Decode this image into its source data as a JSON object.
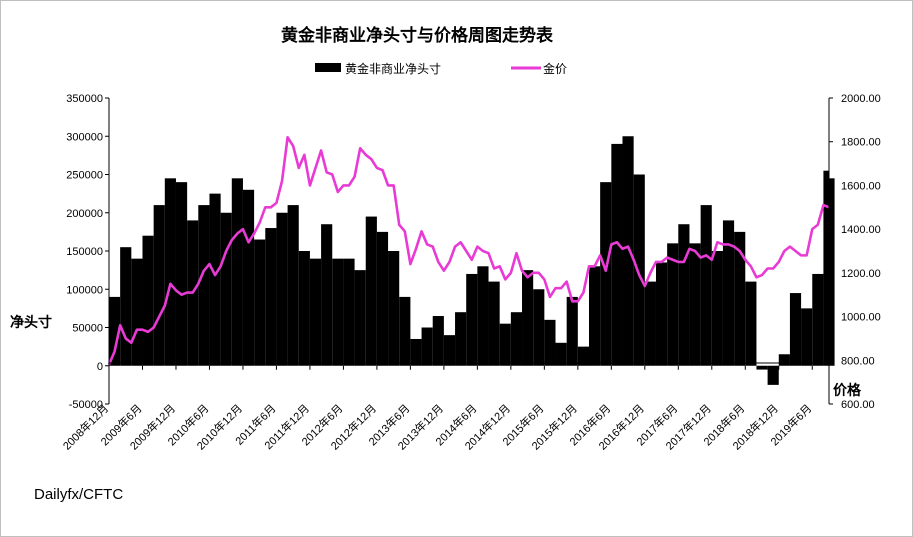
{
  "chart_data": {
    "type": "bar+line",
    "title": "黄金非商业净头寸与价格周图走势表",
    "source": "Dailyfx/CFTC",
    "left_axis_label": "净头寸",
    "right_axis_label": "价格",
    "legend_position": "top",
    "grid": false,
    "left_ylim": [
      -50000,
      350000
    ],
    "right_ylim": [
      600,
      2000
    ],
    "left_ticks": [
      "350000",
      "300000",
      "250000",
      "200000",
      "150000",
      "100000",
      "50000",
      "0",
      "-50000"
    ],
    "right_ticks": [
      "2000.00",
      "1800.00",
      "1600.00",
      "1400.00",
      "1200.00",
      "1000.00",
      "800.00",
      "600.00"
    ],
    "x_ticks": [
      "2008年12月",
      "2009年6月",
      "2009年12月",
      "2010年6月",
      "2010年12月",
      "2011年6月",
      "2011年12月",
      "2012年6月",
      "2012年12月",
      "2013年6月",
      "2013年12月",
      "2014年6月",
      "2014年12月",
      "2015年6月",
      "2015年12月",
      "2016年6月",
      "2016年12月",
      "2017年6月",
      "2017年12月",
      "2018年6月",
      "2018年12月",
      "2019年6月"
    ],
    "x_start": "2008-12",
    "x_end": "2019-09",
    "series": [
      {
        "name": "黄金非商业净头寸",
        "type": "bar",
        "axis": "left",
        "color": "#000000",
        "points": [
          [
            "2008-12",
            90000
          ],
          [
            "2009-02",
            155000
          ],
          [
            "2009-04",
            140000
          ],
          [
            "2009-06",
            170000
          ],
          [
            "2009-08",
            210000
          ],
          [
            "2009-10",
            245000
          ],
          [
            "2009-12",
            240000
          ],
          [
            "2010-02",
            190000
          ],
          [
            "2010-04",
            210000
          ],
          [
            "2010-06",
            225000
          ],
          [
            "2010-08",
            200000
          ],
          [
            "2010-10",
            245000
          ],
          [
            "2010-12",
            230000
          ],
          [
            "2011-02",
            165000
          ],
          [
            "2011-04",
            180000
          ],
          [
            "2011-06",
            200000
          ],
          [
            "2011-08",
            210000
          ],
          [
            "2011-10",
            150000
          ],
          [
            "2011-12",
            140000
          ],
          [
            "2012-02",
            185000
          ],
          [
            "2012-04",
            140000
          ],
          [
            "2012-06",
            140000
          ],
          [
            "2012-08",
            125000
          ],
          [
            "2012-10",
            195000
          ],
          [
            "2012-12",
            175000
          ],
          [
            "2013-02",
            150000
          ],
          [
            "2013-04",
            90000
          ],
          [
            "2013-06",
            35000
          ],
          [
            "2013-08",
            50000
          ],
          [
            "2013-10",
            65000
          ],
          [
            "2013-12",
            40000
          ],
          [
            "2014-02",
            70000
          ],
          [
            "2014-04",
            120000
          ],
          [
            "2014-06",
            130000
          ],
          [
            "2014-08",
            110000
          ],
          [
            "2014-10",
            55000
          ],
          [
            "2014-12",
            70000
          ],
          [
            "2015-02",
            125000
          ],
          [
            "2015-04",
            100000
          ],
          [
            "2015-06",
            60000
          ],
          [
            "2015-08",
            30000
          ],
          [
            "2015-10",
            90000
          ],
          [
            "2015-12",
            25000
          ],
          [
            "2016-02",
            130000
          ],
          [
            "2016-04",
            240000
          ],
          [
            "2016-06",
            290000
          ],
          [
            "2016-08",
            300000
          ],
          [
            "2016-10",
            250000
          ],
          [
            "2016-12",
            110000
          ],
          [
            "2017-02",
            135000
          ],
          [
            "2017-04",
            160000
          ],
          [
            "2017-06",
            185000
          ],
          [
            "2017-08",
            160000
          ],
          [
            "2017-10",
            210000
          ],
          [
            "2017-12",
            150000
          ],
          [
            "2018-02",
            190000
          ],
          [
            "2018-04",
            175000
          ],
          [
            "2018-06",
            110000
          ],
          [
            "2018-08",
            -5000
          ],
          [
            "2018-10",
            -25000
          ],
          [
            "2018-12",
            15000
          ],
          [
            "2019-02",
            95000
          ],
          [
            "2019-04",
            75000
          ],
          [
            "2019-06",
            120000
          ],
          [
            "2019-08",
            255000
          ],
          [
            "2019-09",
            245000
          ]
        ]
      },
      {
        "name": "金价",
        "type": "line",
        "axis": "right",
        "color": "#e83ad4",
        "points": [
          [
            "2008-12",
            780
          ],
          [
            "2009-01",
            840
          ],
          [
            "2009-02",
            960
          ],
          [
            "2009-03",
            900
          ],
          [
            "2009-04",
            880
          ],
          [
            "2009-05",
            940
          ],
          [
            "2009-06",
            940
          ],
          [
            "2009-07",
            930
          ],
          [
            "2009-08",
            950
          ],
          [
            "2009-09",
            1000
          ],
          [
            "2009-10",
            1050
          ],
          [
            "2009-11",
            1150
          ],
          [
            "2009-12",
            1120
          ],
          [
            "2010-01",
            1100
          ],
          [
            "2010-02",
            1110
          ],
          [
            "2010-03",
            1110
          ],
          [
            "2010-04",
            1150
          ],
          [
            "2010-05",
            1210
          ],
          [
            "2010-06",
            1240
          ],
          [
            "2010-07",
            1190
          ],
          [
            "2010-08",
            1230
          ],
          [
            "2010-09",
            1300
          ],
          [
            "2010-10",
            1350
          ],
          [
            "2010-11",
            1380
          ],
          [
            "2010-12",
            1400
          ],
          [
            "2011-01",
            1340
          ],
          [
            "2011-02",
            1380
          ],
          [
            "2011-03",
            1430
          ],
          [
            "2011-04",
            1500
          ],
          [
            "2011-05",
            1500
          ],
          [
            "2011-06",
            1520
          ],
          [
            "2011-07",
            1620
          ],
          [
            "2011-08",
            1820
          ],
          [
            "2011-09",
            1780
          ],
          [
            "2011-10",
            1680
          ],
          [
            "2011-11",
            1740
          ],
          [
            "2011-12",
            1600
          ],
          [
            "2012-01",
            1680
          ],
          [
            "2012-02",
            1760
          ],
          [
            "2012-03",
            1660
          ],
          [
            "2012-04",
            1650
          ],
          [
            "2012-05",
            1570
          ],
          [
            "2012-06",
            1600
          ],
          [
            "2012-07",
            1600
          ],
          [
            "2012-08",
            1640
          ],
          [
            "2012-09",
            1770
          ],
          [
            "2012-10",
            1740
          ],
          [
            "2012-11",
            1720
          ],
          [
            "2012-12",
            1680
          ],
          [
            "2013-01",
            1670
          ],
          [
            "2013-02",
            1600
          ],
          [
            "2013-03",
            1600
          ],
          [
            "2013-04",
            1420
          ],
          [
            "2013-05",
            1390
          ],
          [
            "2013-06",
            1240
          ],
          [
            "2013-07",
            1310
          ],
          [
            "2013-08",
            1390
          ],
          [
            "2013-09",
            1330
          ],
          [
            "2013-10",
            1320
          ],
          [
            "2013-11",
            1250
          ],
          [
            "2013-12",
            1210
          ],
          [
            "2014-01",
            1250
          ],
          [
            "2014-02",
            1320
          ],
          [
            "2014-03",
            1340
          ],
          [
            "2014-04",
            1300
          ],
          [
            "2014-05",
            1260
          ],
          [
            "2014-06",
            1320
          ],
          [
            "2014-07",
            1300
          ],
          [
            "2014-08",
            1290
          ],
          [
            "2014-09",
            1220
          ],
          [
            "2014-10",
            1230
          ],
          [
            "2014-11",
            1170
          ],
          [
            "2014-12",
            1200
          ],
          [
            "2015-01",
            1290
          ],
          [
            "2015-02",
            1210
          ],
          [
            "2015-03",
            1180
          ],
          [
            "2015-04",
            1200
          ],
          [
            "2015-05",
            1200
          ],
          [
            "2015-06",
            1170
          ],
          [
            "2015-07",
            1090
          ],
          [
            "2015-08",
            1130
          ],
          [
            "2015-09",
            1130
          ],
          [
            "2015-10",
            1160
          ],
          [
            "2015-11",
            1070
          ],
          [
            "2015-12",
            1070
          ],
          [
            "2016-01",
            1110
          ],
          [
            "2016-02",
            1230
          ],
          [
            "2016-03",
            1230
          ],
          [
            "2016-04",
            1280
          ],
          [
            "2016-05",
            1210
          ],
          [
            "2016-06",
            1330
          ],
          [
            "2016-07",
            1340
          ],
          [
            "2016-08",
            1310
          ],
          [
            "2016-09",
            1320
          ],
          [
            "2016-10",
            1260
          ],
          [
            "2016-11",
            1190
          ],
          [
            "2016-12",
            1140
          ],
          [
            "2017-01",
            1200
          ],
          [
            "2017-02",
            1250
          ],
          [
            "2017-03",
            1250
          ],
          [
            "2017-04",
            1270
          ],
          [
            "2017-05",
            1260
          ],
          [
            "2017-06",
            1250
          ],
          [
            "2017-07",
            1250
          ],
          [
            "2017-08",
            1310
          ],
          [
            "2017-09",
            1300
          ],
          [
            "2017-10",
            1270
          ],
          [
            "2017-11",
            1280
          ],
          [
            "2017-12",
            1260
          ],
          [
            "2018-01",
            1340
          ],
          [
            "2018-02",
            1330
          ],
          [
            "2018-03",
            1330
          ],
          [
            "2018-04",
            1320
          ],
          [
            "2018-05",
            1300
          ],
          [
            "2018-06",
            1260
          ],
          [
            "2018-07",
            1230
          ],
          [
            "2018-08",
            1180
          ],
          [
            "2018-09",
            1190
          ],
          [
            "2018-10",
            1220
          ],
          [
            "2018-11",
            1220
          ],
          [
            "2018-12",
            1250
          ],
          [
            "2019-01",
            1300
          ],
          [
            "2019-02",
            1320
          ],
          [
            "2019-03",
            1300
          ],
          [
            "2019-04",
            1280
          ],
          [
            "2019-05",
            1280
          ],
          [
            "2019-06",
            1400
          ],
          [
            "2019-07",
            1420
          ],
          [
            "2019-08",
            1510
          ],
          [
            "2019-09",
            1500
          ]
        ]
      }
    ]
  }
}
